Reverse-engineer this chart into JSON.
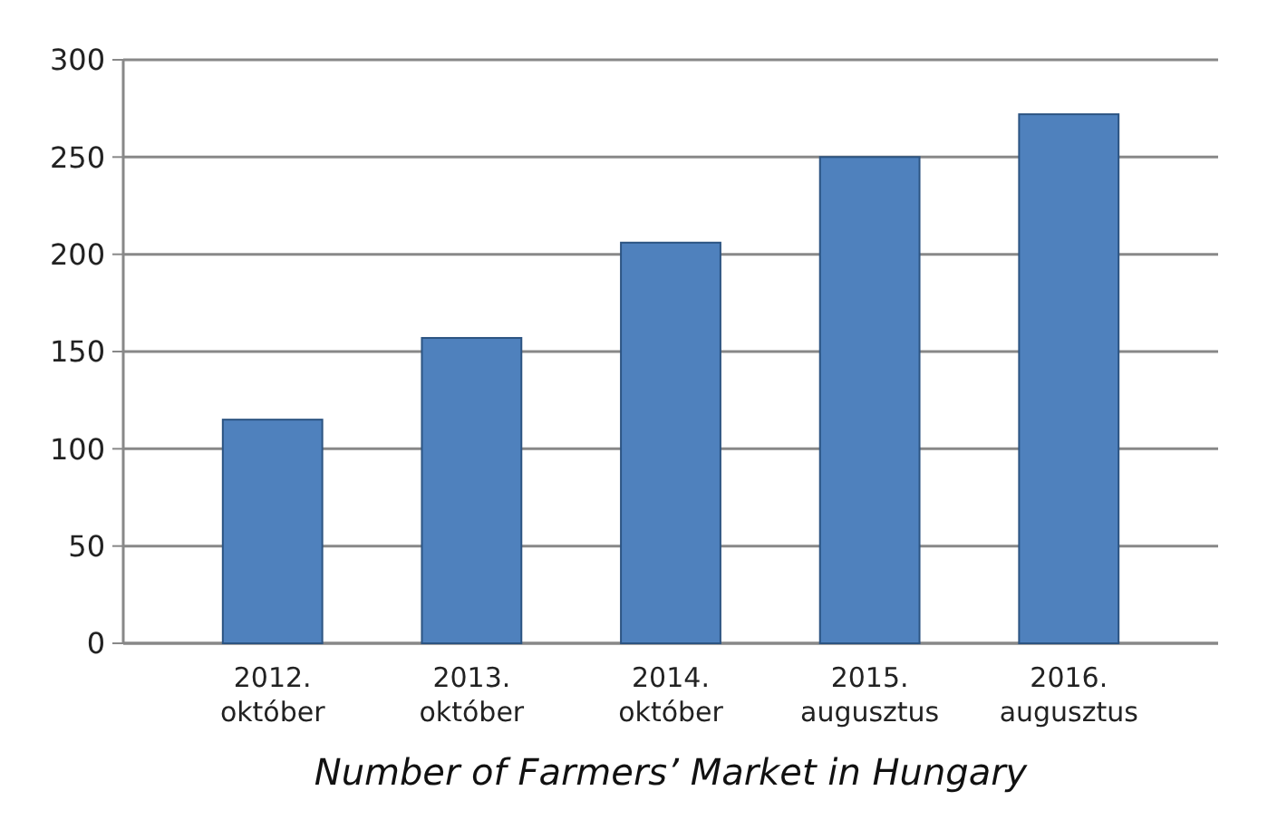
{
  "chart_data": {
    "type": "bar",
    "title": "Number of Farmers’ Market in Hungary",
    "categories": [
      "2012.\noktóber",
      "2013.\noktóber",
      "2014.\noktóber",
      "2015.\naugusztus",
      "2016.\naugusztus"
    ],
    "values": [
      115,
      157,
      206,
      250,
      272
    ],
    "color": "#4f81bd",
    "ylim": [
      0,
      300
    ],
    "yticks": [
      0,
      50,
      100,
      150,
      200,
      250,
      300
    ],
    "grid": "y"
  }
}
